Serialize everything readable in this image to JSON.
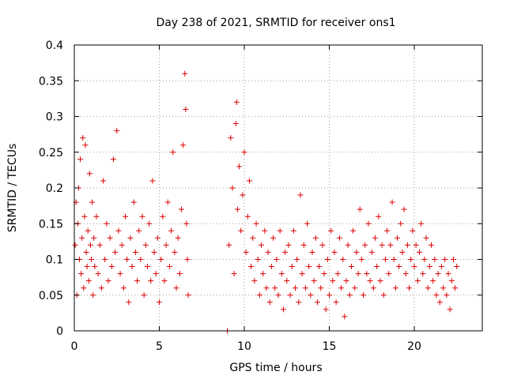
{
  "chart_data": {
    "type": "scatter",
    "title": "Day 238 of 2021, SRMTID for receiver ons1",
    "xlabel": "GPS time / hours",
    "ylabel": "SRMTID / TECUs",
    "xlim": [
      0,
      24
    ],
    "ylim": [
      0,
      0.4
    ],
    "xticks": [
      0,
      5,
      10,
      15,
      20
    ],
    "yticks": [
      0,
      0.05,
      0.1,
      0.15,
      0.2,
      0.25,
      0.3,
      0.35,
      0.4
    ],
    "xtick_labels": [
      "0",
      "5",
      "10",
      "15",
      "20"
    ],
    "ytick_labels": [
      "0",
      "0.05",
      "0.1",
      "0.15",
      "0.2",
      "0.25",
      "0.3",
      "0.35",
      "0.4"
    ],
    "grid": true,
    "marker": "plus",
    "color": "#dd0000",
    "series": [
      {
        "name": "SRMTID",
        "points": [
          [
            0.05,
            0.12
          ],
          [
            0.1,
            0.18
          ],
          [
            0.15,
            0.05
          ],
          [
            0.2,
            0.15
          ],
          [
            0.25,
            0.2
          ],
          [
            0.3,
            0.1
          ],
          [
            0.35,
            0.24
          ],
          [
            0.4,
            0.08
          ],
          [
            0.45,
            0.13
          ],
          [
            0.5,
            0.27
          ],
          [
            0.55,
            0.06
          ],
          [
            0.6,
            0.16
          ],
          [
            0.65,
            0.26
          ],
          [
            0.7,
            0.11
          ],
          [
            0.75,
            0.09
          ],
          [
            0.8,
            0.14
          ],
          [
            0.85,
            0.07
          ],
          [
            0.9,
            0.22
          ],
          [
            0.95,
            0.12
          ],
          [
            1.0,
            0.1
          ],
          [
            1.05,
            0.18
          ],
          [
            1.1,
            0.05
          ],
          [
            1.15,
            0.13
          ],
          [
            1.2,
            0.09
          ],
          [
            1.3,
            0.16
          ],
          [
            1.4,
            0.08
          ],
          [
            1.5,
            0.12
          ],
          [
            1.6,
            0.06
          ],
          [
            1.7,
            0.21
          ],
          [
            1.8,
            0.1
          ],
          [
            1.9,
            0.15
          ],
          [
            2.0,
            0.07
          ],
          [
            2.1,
            0.13
          ],
          [
            2.2,
            0.09
          ],
          [
            2.3,
            0.24
          ],
          [
            2.4,
            0.11
          ],
          [
            2.5,
            0.28
          ],
          [
            2.6,
            0.14
          ],
          [
            2.7,
            0.08
          ],
          [
            2.8,
            0.12
          ],
          [
            2.9,
            0.06
          ],
          [
            3.0,
            0.16
          ],
          [
            3.1,
            0.1
          ],
          [
            3.2,
            0.04
          ],
          [
            3.3,
            0.13
          ],
          [
            3.4,
            0.09
          ],
          [
            3.5,
            0.18
          ],
          [
            3.6,
            0.11
          ],
          [
            3.7,
            0.07
          ],
          [
            3.8,
            0.14
          ],
          [
            3.9,
            0.1
          ],
          [
            4.0,
            0.16
          ],
          [
            4.1,
            0.05
          ],
          [
            4.2,
            0.12
          ],
          [
            4.3,
            0.09
          ],
          [
            4.4,
            0.15
          ],
          [
            4.5,
            0.07
          ],
          [
            4.6,
            0.21
          ],
          [
            4.7,
            0.11
          ],
          [
            4.8,
            0.08
          ],
          [
            4.9,
            0.13
          ],
          [
            5.0,
            0.04
          ],
          [
            5.1,
            0.1
          ],
          [
            5.2,
            0.16
          ],
          [
            5.3,
            0.07
          ],
          [
            5.4,
            0.12
          ],
          [
            5.5,
            0.18
          ],
          [
            5.6,
            0.09
          ],
          [
            5.7,
            0.14
          ],
          [
            5.8,
            0.25
          ],
          [
            5.9,
            0.11
          ],
          [
            6.0,
            0.06
          ],
          [
            6.1,
            0.13
          ],
          [
            6.2,
            0.08
          ],
          [
            6.3,
            0.17
          ],
          [
            6.4,
            0.26
          ],
          [
            6.5,
            0.36
          ],
          [
            6.55,
            0.31
          ],
          [
            6.6,
            0.15
          ],
          [
            6.65,
            0.1
          ],
          [
            6.7,
            0.05
          ],
          [
            9.0,
            0.0
          ],
          [
            9.1,
            0.12
          ],
          [
            9.2,
            0.27
          ],
          [
            9.3,
            0.2
          ],
          [
            9.4,
            0.08
          ],
          [
            9.5,
            0.29
          ],
          [
            9.55,
            0.32
          ],
          [
            9.6,
            0.17
          ],
          [
            9.7,
            0.23
          ],
          [
            9.8,
            0.14
          ],
          [
            9.9,
            0.19
          ],
          [
            10.0,
            0.25
          ],
          [
            10.1,
            0.11
          ],
          [
            10.2,
            0.16
          ],
          [
            10.3,
            0.21
          ],
          [
            10.4,
            0.09
          ],
          [
            10.5,
            0.13
          ],
          [
            10.6,
            0.07
          ],
          [
            10.7,
            0.15
          ],
          [
            10.8,
            0.1
          ],
          [
            10.9,
            0.05
          ],
          [
            11.0,
            0.12
          ],
          [
            11.1,
            0.08
          ],
          [
            11.2,
            0.14
          ],
          [
            11.3,
            0.06
          ],
          [
            11.4,
            0.11
          ],
          [
            11.5,
            0.04
          ],
          [
            11.6,
            0.09
          ],
          [
            11.7,
            0.13
          ],
          [
            11.8,
            0.06
          ],
          [
            11.9,
            0.1
          ],
          [
            12.0,
            0.05
          ],
          [
            12.1,
            0.14
          ],
          [
            12.2,
            0.08
          ],
          [
            12.3,
            0.03
          ],
          [
            12.4,
            0.11
          ],
          [
            12.5,
            0.07
          ],
          [
            12.6,
            0.12
          ],
          [
            12.7,
            0.05
          ],
          [
            12.8,
            0.09
          ],
          [
            12.9,
            0.14
          ],
          [
            13.0,
            0.06
          ],
          [
            13.1,
            0.1
          ],
          [
            13.2,
            0.04
          ],
          [
            13.3,
            0.19
          ],
          [
            13.4,
            0.08
          ],
          [
            13.5,
            0.12
          ],
          [
            13.6,
            0.06
          ],
          [
            13.7,
            0.15
          ],
          [
            13.8,
            0.09
          ],
          [
            13.9,
            0.05
          ],
          [
            14.0,
            0.11
          ],
          [
            14.1,
            0.07
          ],
          [
            14.2,
            0.13
          ],
          [
            14.3,
            0.04
          ],
          [
            14.4,
            0.09
          ],
          [
            14.5,
            0.06
          ],
          [
            14.6,
            0.12
          ],
          [
            14.7,
            0.08
          ],
          [
            14.8,
            0.03
          ],
          [
            14.9,
            0.1
          ],
          [
            15.0,
            0.05
          ],
          [
            15.1,
            0.14
          ],
          [
            15.2,
            0.07
          ],
          [
            15.3,
            0.11
          ],
          [
            15.4,
            0.04
          ],
          [
            15.5,
            0.08
          ],
          [
            15.6,
            0.13
          ],
          [
            15.7,
            0.06
          ],
          [
            15.8,
            0.1
          ],
          [
            15.9,
            0.02
          ],
          [
            16.0,
            0.07
          ],
          [
            16.1,
            0.12
          ],
          [
            16.2,
            0.05
          ],
          [
            16.3,
            0.09
          ],
          [
            16.4,
            0.14
          ],
          [
            16.5,
            0.06
          ],
          [
            16.6,
            0.11
          ],
          [
            16.7,
            0.08
          ],
          [
            16.8,
            0.17
          ],
          [
            16.9,
            0.1
          ],
          [
            17.0,
            0.05
          ],
          [
            17.1,
            0.12
          ],
          [
            17.2,
            0.08
          ],
          [
            17.3,
            0.15
          ],
          [
            17.4,
            0.07
          ],
          [
            17.5,
            0.11
          ],
          [
            17.6,
            0.06
          ],
          [
            17.7,
            0.13
          ],
          [
            17.8,
            0.09
          ],
          [
            17.9,
            0.16
          ],
          [
            18.0,
            0.07
          ],
          [
            18.1,
            0.12
          ],
          [
            18.2,
            0.05
          ],
          [
            18.3,
            0.1
          ],
          [
            18.4,
            0.14
          ],
          [
            18.5,
            0.08
          ],
          [
            18.6,
            0.12
          ],
          [
            18.7,
            0.18
          ],
          [
            18.8,
            0.1
          ],
          [
            18.9,
            0.06
          ],
          [
            19.0,
            0.13
          ],
          [
            19.1,
            0.09
          ],
          [
            19.2,
            0.15
          ],
          [
            19.3,
            0.11
          ],
          [
            19.4,
            0.17
          ],
          [
            19.5,
            0.08
          ],
          [
            19.6,
            0.12
          ],
          [
            19.7,
            0.06
          ],
          [
            19.8,
            0.1
          ],
          [
            19.9,
            0.14
          ],
          [
            20.0,
            0.09
          ],
          [
            20.1,
            0.12
          ],
          [
            20.2,
            0.07
          ],
          [
            20.3,
            0.11
          ],
          [
            20.4,
            0.15
          ],
          [
            20.5,
            0.08
          ],
          [
            20.6,
            0.1
          ],
          [
            20.7,
            0.13
          ],
          [
            20.8,
            0.06
          ],
          [
            20.9,
            0.09
          ],
          [
            21.0,
            0.12
          ],
          [
            21.1,
            0.07
          ],
          [
            21.2,
            0.1
          ],
          [
            21.3,
            0.05
          ],
          [
            21.4,
            0.08
          ],
          [
            21.5,
            0.04
          ],
          [
            21.6,
            0.09
          ],
          [
            21.7,
            0.06
          ],
          [
            21.8,
            0.1
          ],
          [
            21.9,
            0.05
          ],
          [
            22.0,
            0.08
          ],
          [
            22.1,
            0.03
          ],
          [
            22.2,
            0.07
          ],
          [
            22.3,
            0.1
          ],
          [
            22.4,
            0.06
          ],
          [
            22.5,
            0.09
          ]
        ]
      }
    ]
  }
}
